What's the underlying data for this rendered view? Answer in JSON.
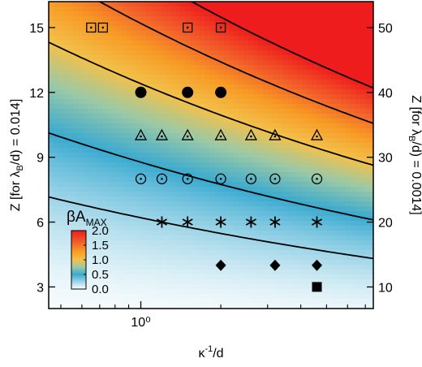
{
  "chart_data": {
    "type": "heatmap",
    "xlabel_main": "κ",
    "xlabel_sup": "-1",
    "xlabel_tail": "/d",
    "ylabel_left": "Z [for λB/d) = 0.014]",
    "ylabel_left_parts": [
      "Z [for λ",
      "B",
      "/d) = 0.014]"
    ],
    "ylabel_right": "Z [for λB/d) = 0.0014]",
    "ylabel_right_parts": [
      "Z [for λ",
      "B",
      "/d) = 0.0014]"
    ],
    "x_scale": "log",
    "xlim": [
      0.45,
      7.5
    ],
    "ylim": [
      2,
      16.2
    ],
    "y2lim": [
      6.67,
      54
    ],
    "x_major_ticks": [
      1
    ],
    "x_major_tick_labels": [
      "10⁰"
    ],
    "x_minor_ticks": [
      0.5,
      0.6,
      0.7,
      0.8,
      0.9,
      2,
      3,
      4,
      5,
      6,
      7
    ],
    "y_ticks": [
      3,
      6,
      9,
      12,
      15
    ],
    "y_tick_labels": [
      "3",
      "6",
      "9",
      "12",
      "15"
    ],
    "y2_ticks": [
      10,
      20,
      30,
      40,
      50
    ],
    "y2_tick_labels": [
      "10",
      "20",
      "30",
      "40",
      "50"
    ],
    "colorbar": {
      "title_parts": [
        "βA",
        "MAX"
      ],
      "title": "βAMAX",
      "range": [
        0,
        2
      ],
      "ticks": [
        0,
        0.5,
        1,
        1.5,
        2
      ],
      "tick_labels": [
        "0.0",
        "0.5",
        "1.0",
        "1.5",
        "2.0"
      ],
      "stops": [
        {
          "v": 0.0,
          "color": "#ffffff"
        },
        {
          "v": 0.5,
          "color": "#3aaad0"
        },
        {
          "v": 0.75,
          "color": "#9bc9a6"
        },
        {
          "v": 1.0,
          "color": "#f2c14a"
        },
        {
          "v": 1.3,
          "color": "#f79a25"
        },
        {
          "v": 1.6,
          "color": "#f25f2a"
        },
        {
          "v": 2.0,
          "color": "#ee1c1c"
        }
      ]
    },
    "contour_levels": [
      0.25,
      0.5,
      1.0,
      1.5,
      2.0
    ],
    "series": [
      {
        "marker": "square-dot",
        "points": [
          [
            0.65,
            15
          ],
          [
            0.72,
            15
          ],
          [
            1.5,
            15
          ],
          [
            2.0,
            15
          ]
        ]
      },
      {
        "marker": "filled-circle",
        "points": [
          [
            1.0,
            12
          ],
          [
            1.5,
            12
          ],
          [
            2.0,
            12
          ]
        ]
      },
      {
        "marker": "triangle-dot",
        "points": [
          [
            1.0,
            10
          ],
          [
            1.2,
            10
          ],
          [
            1.5,
            10
          ],
          [
            2.0,
            10
          ],
          [
            2.6,
            10
          ],
          [
            3.2,
            10
          ],
          [
            4.6,
            10
          ]
        ]
      },
      {
        "marker": "circle-dot",
        "points": [
          [
            1.0,
            8
          ],
          [
            1.2,
            8
          ],
          [
            1.5,
            8
          ],
          [
            2.0,
            8
          ],
          [
            2.6,
            8
          ],
          [
            3.2,
            8
          ],
          [
            4.6,
            8
          ]
        ]
      },
      {
        "marker": "asterisk",
        "points": [
          [
            1.2,
            6
          ],
          [
            1.5,
            6
          ],
          [
            2.0,
            6
          ],
          [
            2.6,
            6
          ],
          [
            3.2,
            6
          ],
          [
            4.6,
            6
          ]
        ]
      },
      {
        "marker": "filled-diamond",
        "points": [
          [
            2.0,
            4
          ],
          [
            3.2,
            4
          ],
          [
            4.6,
            4
          ]
        ]
      },
      {
        "marker": "filled-square",
        "points": [
          [
            4.6,
            3
          ]
        ]
      }
    ]
  }
}
